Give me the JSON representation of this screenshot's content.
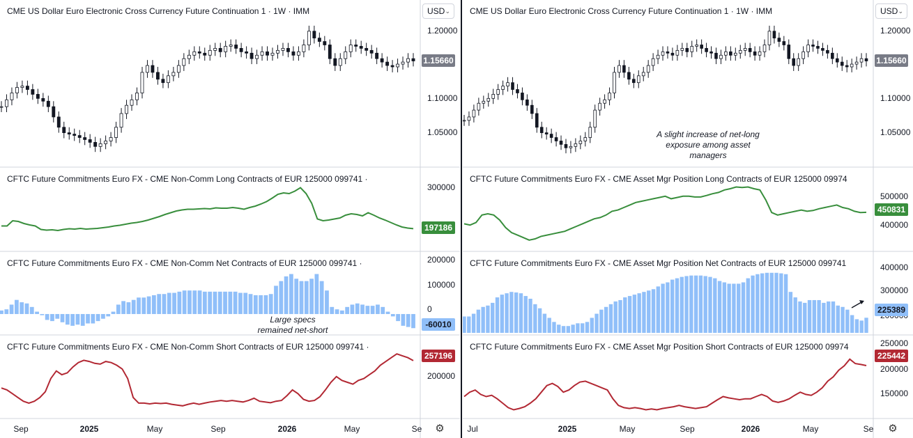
{
  "currency": "USD",
  "charts": [
    {
      "id": "left",
      "time_axis": [
        "Sep",
        "2025",
        "May",
        "Sep",
        "2026",
        "May",
        "Se"
      ],
      "panes": [
        {
          "title": "CME US Dollar Euro Electronic Cross Currency Future Continuation 1 · 1W · IMM",
          "ticks": [
            "1.20000",
            "1.10000",
            "1.05000"
          ],
          "last": "1.15660",
          "color": "#787b86"
        },
        {
          "title": "CFTC Future Commitments Euro FX - CME Non-Comm Long Contracts of EUR 125000 099741 ·",
          "ticks": [
            "300000"
          ],
          "last": "197186",
          "color": "#388e3c"
        },
        {
          "title": "CFTC Future Commitments Euro FX - CME Non-Comm Net Contracts of EUR 125000 099741 ·",
          "ticks": [
            "200000",
            "100000",
            "0"
          ],
          "last": "-60010",
          "color": "#90bff9"
        },
        {
          "title": "CFTC Future Commitments Euro FX - CME Non-Comm Short Contracts of EUR 125000 099741 ·",
          "ticks": [
            "200000"
          ],
          "last": "257196",
          "color": "#b22833"
        }
      ],
      "annotations": [
        {
          "text_lines": [
            "Large specs",
            "remained net-short"
          ]
        }
      ]
    },
    {
      "id": "right",
      "time_axis": [
        "Jul",
        "2025",
        "May",
        "Sep",
        "2026",
        "May",
        "Se"
      ],
      "panes": [
        {
          "title": "CME US Dollar Euro Electronic Cross Currency Future Continuation 1 · 1W · IMM",
          "ticks": [
            "1.20000",
            "1.10000",
            "1.05000"
          ],
          "last": "1.15660",
          "color": "#787b86"
        },
        {
          "title": "CFTC Future Commitments Euro FX - CME Asset Mgr Position Long Contracts of EUR 125000 09974",
          "ticks": [
            "500000",
            "400000"
          ],
          "last": "450831",
          "color": "#388e3c"
        },
        {
          "title": "CFTC Future Commitments Euro FX - CME Asset Mgr Position Net Contracts of EUR 125000 099741",
          "ticks": [
            "400000",
            "300000",
            "200000"
          ],
          "last": "225389",
          "color": "#90bff9"
        },
        {
          "title": "CFTC Future Commitments Euro FX - CME Asset Mgr Position Short Contracts of EUR 125000 09974",
          "ticks": [
            "250000",
            "200000",
            "150000"
          ],
          "last": "225442",
          "color": "#b22833"
        }
      ],
      "annotations": [
        {
          "text_lines": [
            "A slight increase of net-long",
            "exposure among asset",
            "managers"
          ]
        }
      ]
    }
  ],
  "chart_data": [
    {
      "type": "candlestick",
      "title": "CME US Dollar Euro Electronic Cross Currency Future Continuation 1 · 1W · IMM",
      "ylim": [
        1.01,
        1.215
      ],
      "series": [
        {
          "name": "Close",
          "values": [
            1.09,
            1.1,
            1.11,
            1.118,
            1.12,
            1.115,
            1.108,
            1.102,
            1.098,
            1.09,
            1.075,
            1.06,
            1.052,
            1.05,
            1.048,
            1.045,
            1.042,
            1.038,
            1.032,
            1.036,
            1.04,
            1.045,
            1.06,
            1.08,
            1.092,
            1.1,
            1.11,
            1.14,
            1.15,
            1.14,
            1.13,
            1.125,
            1.135,
            1.14,
            1.15,
            1.16,
            1.165,
            1.17,
            1.168,
            1.165,
            1.172,
            1.175,
            1.17,
            1.178,
            1.18,
            1.175,
            1.17,
            1.168,
            1.16,
            1.165,
            1.17,
            1.165,
            1.168,
            1.172,
            1.175,
            1.17,
            1.165,
            1.17,
            1.18,
            1.2,
            1.19,
            1.185,
            1.18,
            1.16,
            1.15,
            1.16,
            1.17,
            1.18,
            1.178,
            1.175,
            1.172,
            1.168,
            1.16,
            1.155,
            1.15,
            1.148,
            1.152,
            1.155,
            1.16,
            1.1566
          ]
        }
      ]
    },
    {
      "type": "line",
      "title": "CFTC Future Commitments Euro FX - CME Non-Comm Long Contracts of EUR 125000 099741",
      "ylim": [
        150000,
        330000
      ],
      "series": [
        {
          "name": "Long",
          "values": [
            205000,
            205000,
            220000,
            218000,
            212000,
            208000,
            205000,
            195000,
            193000,
            194000,
            192000,
            195000,
            197000,
            196000,
            198000,
            196000,
            197000,
            198000,
            200000,
            202000,
            205000,
            207000,
            210000,
            213000,
            215000,
            218000,
            222000,
            227000,
            232000,
            238000,
            243000,
            248000,
            251000,
            253000,
            253000,
            254000,
            255000,
            254000,
            257000,
            256000,
            256000,
            258000,
            256000,
            253000,
            258000,
            262000,
            268000,
            275000,
            285000,
            296000,
            300000,
            298000,
            305000,
            315000,
            298000,
            270000,
            225000,
            220000,
            222000,
            225000,
            228000,
            236000,
            240000,
            238000,
            234000,
            243000,
            236000,
            228000,
            222000,
            215000,
            208000,
            202000,
            199000,
            197186
          ]
        }
      ]
    },
    {
      "type": "bar",
      "title": "CFTC Future Commitments Euro FX - CME Non-Comm Net Contracts of EUR 125000 099741",
      "ylim": [
        -80000,
        210000
      ],
      "series": [
        {
          "name": "Net",
          "values": [
            15000,
            20000,
            40000,
            60000,
            50000,
            45000,
            30000,
            10000,
            -5000,
            -25000,
            -30000,
            -20000,
            -35000,
            -45000,
            -50000,
            -45000,
            -50000,
            -40000,
            -40000,
            -30000,
            -20000,
            -10000,
            10000,
            40000,
            55000,
            50000,
            60000,
            70000,
            70000,
            75000,
            80000,
            85000,
            85000,
            90000,
            90000,
            95000,
            100000,
            100000,
            100000,
            100000,
            95000,
            95000,
            95000,
            95000,
            95000,
            95000,
            95000,
            90000,
            90000,
            85000,
            80000,
            80000,
            80000,
            85000,
            120000,
            140000,
            160000,
            170000,
            150000,
            140000,
            140000,
            150000,
            170000,
            140000,
            100000,
            30000,
            20000,
            15000,
            30000,
            40000,
            45000,
            40000,
            35000,
            35000,
            40000,
            30000,
            10000,
            -10000,
            -30000,
            -50000,
            -55000,
            -60010
          ]
        }
      ]
    },
    {
      "type": "line",
      "title": "CFTC Future Commitments Euro FX - CME Non-Comm Short Contracts of EUR 125000 099741",
      "ylim": [
        110000,
        290000
      ],
      "series": [
        {
          "name": "Short",
          "values": [
            185000,
            180000,
            170000,
            160000,
            150000,
            145000,
            150000,
            160000,
            175000,
            210000,
            230000,
            220000,
            225000,
            240000,
            252000,
            258000,
            255000,
            250000,
            248000,
            255000,
            252000,
            245000,
            235000,
            210000,
            160000,
            145000,
            145000,
            143000,
            145000,
            144000,
            145000,
            142000,
            140000,
            138000,
            142000,
            145000,
            142000,
            145000,
            148000,
            150000,
            152000,
            150000,
            152000,
            150000,
            148000,
            152000,
            158000,
            150000,
            148000,
            146000,
            150000,
            152000,
            165000,
            180000,
            170000,
            155000,
            150000,
            152000,
            162000,
            180000,
            200000,
            215000,
            205000,
            200000,
            195000,
            205000,
            210000,
            220000,
            230000,
            245000,
            255000,
            265000,
            275000,
            270000,
            265000,
            257196
          ]
        }
      ]
    },
    {
      "type": "candlestick",
      "title": "CME US Dollar Euro Electronic Cross Currency Future Continuation 1 · 1W · IMM",
      "ylim": [
        1.01,
        1.215
      ],
      "series": [
        {
          "name": "Close",
          "values": [
            1.07,
            1.075,
            1.085,
            1.095,
            1.098,
            1.102,
            1.108,
            1.115,
            1.12,
            1.125,
            1.115,
            1.11,
            1.1,
            1.092,
            1.08,
            1.06,
            1.052,
            1.05,
            1.045,
            1.04,
            1.035,
            1.03,
            1.032,
            1.036,
            1.04,
            1.045,
            1.06,
            1.085,
            1.095,
            1.1,
            1.11,
            1.14,
            1.15,
            1.14,
            1.13,
            1.125,
            1.135,
            1.14,
            1.15,
            1.16,
            1.165,
            1.17,
            1.168,
            1.165,
            1.172,
            1.175,
            1.17,
            1.178,
            1.18,
            1.175,
            1.17,
            1.168,
            1.16,
            1.165,
            1.17,
            1.165,
            1.168,
            1.172,
            1.175,
            1.17,
            1.165,
            1.17,
            1.18,
            1.2,
            1.19,
            1.185,
            1.18,
            1.16,
            1.15,
            1.16,
            1.17,
            1.18,
            1.178,
            1.175,
            1.172,
            1.168,
            1.16,
            1.155,
            1.15,
            1.148,
            1.152,
            1.155,
            1.16,
            1.1566
          ]
        }
      ]
    },
    {
      "type": "line",
      "title": "CFTC Future Commitments Euro FX - CME Asset Mgr Position Long Contracts of EUR 125000 09974",
      "ylim": [
        320000,
        570000
      ],
      "series": [
        {
          "name": "Long",
          "values": [
            405000,
            400000,
            410000,
            440000,
            445000,
            440000,
            420000,
            390000,
            370000,
            360000,
            350000,
            340000,
            345000,
            355000,
            360000,
            365000,
            370000,
            375000,
            385000,
            395000,
            405000,
            415000,
            425000,
            430000,
            440000,
            455000,
            460000,
            470000,
            480000,
            490000,
            495000,
            500000,
            505000,
            510000,
            515000,
            505000,
            510000,
            515000,
            515000,
            512000,
            512000,
            518000,
            525000,
            530000,
            540000,
            545000,
            552000,
            550000,
            552000,
            545000,
            540000,
            500000,
            450000,
            440000,
            445000,
            450000,
            455000,
            460000,
            455000,
            458000,
            465000,
            470000,
            475000,
            480000,
            470000,
            465000,
            455000,
            450000,
            450831
          ]
        }
      ]
    },
    {
      "type": "bar",
      "title": "CFTC Future Commitments Euro FX - CME Asset Mgr Position Net Contracts of EUR 125000 099741",
      "ylim": [
        170000,
        420000
      ],
      "series": [
        {
          "name": "Net",
          "values": [
            230000,
            230000,
            240000,
            255000,
            265000,
            270000,
            280000,
            300000,
            310000,
            315000,
            320000,
            318000,
            315000,
            305000,
            295000,
            275000,
            260000,
            240000,
            225000,
            210000,
            200000,
            195000,
            195000,
            200000,
            205000,
            205000,
            210000,
            225000,
            240000,
            255000,
            265000,
            275000,
            285000,
            290000,
            300000,
            305000,
            310000,
            315000,
            320000,
            325000,
            330000,
            340000,
            350000,
            355000,
            365000,
            370000,
            375000,
            378000,
            380000,
            380000,
            380000,
            378000,
            375000,
            370000,
            360000,
            355000,
            350000,
            350000,
            350000,
            355000,
            370000,
            380000,
            385000,
            388000,
            390000,
            390000,
            390000,
            388000,
            385000,
            320000,
            300000,
            285000,
            280000,
            290000,
            290000,
            290000,
            280000,
            285000,
            285000,
            270000,
            265000,
            255000,
            235000,
            220000,
            215000,
            225389
          ]
        }
      ]
    },
    {
      "type": "line",
      "title": "CFTC Future Commitments Euro FX - CME Asset Mgr Position Short Contracts of EUR 125000 09974",
      "ylim": [
        110000,
        265000
      ],
      "series": [
        {
          "name": "Short",
          "values": [
            155000,
            165000,
            170000,
            160000,
            155000,
            158000,
            150000,
            140000,
            130000,
            125000,
            128000,
            132000,
            140000,
            150000,
            165000,
            180000,
            185000,
            178000,
            165000,
            170000,
            180000,
            188000,
            190000,
            185000,
            180000,
            175000,
            170000,
            150000,
            135000,
            130000,
            128000,
            130000,
            128000,
            125000,
            127000,
            125000,
            128000,
            130000,
            132000,
            135000,
            132000,
            130000,
            128000,
            130000,
            132000,
            140000,
            148000,
            155000,
            152000,
            150000,
            148000,
            150000,
            150000,
            155000,
            160000,
            155000,
            145000,
            142000,
            145000,
            150000,
            158000,
            165000,
            160000,
            158000,
            165000,
            175000,
            190000,
            200000,
            215000,
            225000,
            240000,
            230000,
            228000,
            225442
          ]
        }
      ]
    }
  ]
}
